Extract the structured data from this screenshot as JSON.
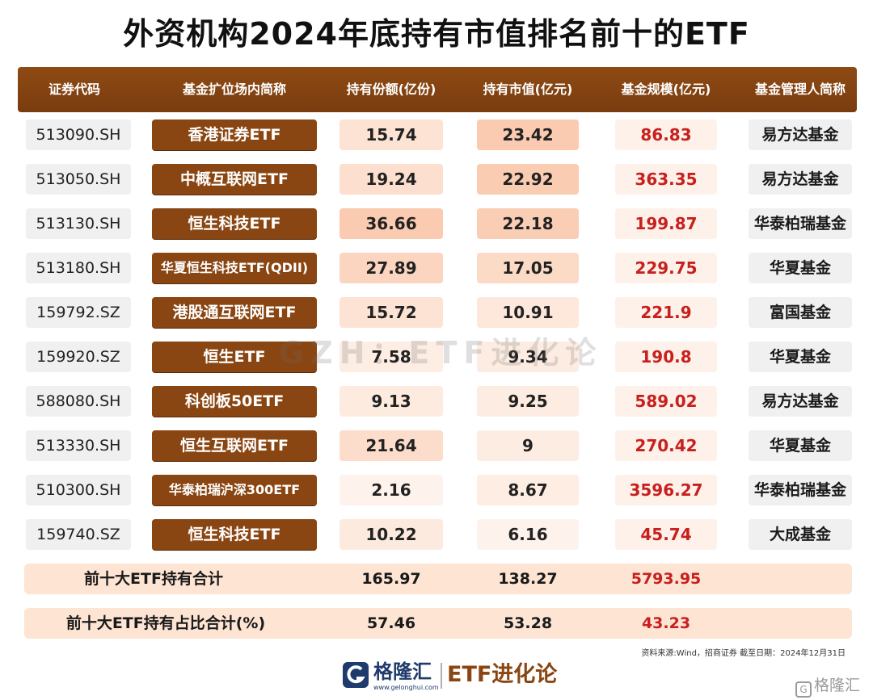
{
  "title": "外资机构2024年底持有市值排名前十的ETF",
  "colors": {
    "header_bg": "#7a3c0e",
    "name_bg": "#8a4612",
    "scale_text": "#c8201d",
    "summary_bg": "#fde4d3"
  },
  "table": {
    "headers": [
      "证券代码",
      "基金扩位场内简称",
      "持有份额(亿份)",
      "持有市值(亿元)",
      "基金规模(亿元)",
      "基金管理人简称"
    ],
    "rows": [
      {
        "code": "513090.SH",
        "name": "香港证券ETF",
        "shares": "15.74",
        "market_value": "23.42",
        "fund_size": "86.83",
        "manager": "易方达基金"
      },
      {
        "code": "513050.SH",
        "name": "中概互联网ETF",
        "shares": "19.24",
        "market_value": "22.92",
        "fund_size": "363.35",
        "manager": "易方达基金"
      },
      {
        "code": "513130.SH",
        "name": "恒生科技ETF",
        "shares": "36.66",
        "market_value": "22.18",
        "fund_size": "199.87",
        "manager": "华泰柏瑞基金"
      },
      {
        "code": "513180.SH",
        "name": "华夏恒生科技ETF(QDII)",
        "shares": "27.89",
        "market_value": "17.05",
        "fund_size": "229.75",
        "manager": "华夏基金"
      },
      {
        "code": "159792.SZ",
        "name": "港股通互联网ETF",
        "shares": "15.72",
        "market_value": "10.91",
        "fund_size": "221.9",
        "manager": "富国基金"
      },
      {
        "code": "159920.SZ",
        "name": "恒生ETF",
        "shares": "7.58",
        "market_value": "9.34",
        "fund_size": "190.8",
        "manager": "华夏基金"
      },
      {
        "code": "588080.SH",
        "name": "科创板50ETF",
        "shares": "9.13",
        "market_value": "9.25",
        "fund_size": "589.02",
        "manager": "易方达基金"
      },
      {
        "code": "513330.SH",
        "name": "恒生互联网ETF",
        "shares": "21.64",
        "market_value": "9",
        "fund_size": "270.42",
        "manager": "华夏基金"
      },
      {
        "code": "510300.SH",
        "name": "华泰柏瑞沪深300ETF",
        "shares": "2.16",
        "market_value": "8.67",
        "fund_size": "3596.27",
        "manager": "华泰柏瑞基金"
      },
      {
        "code": "159740.SZ",
        "name": "恒生科技ETF",
        "shares": "10.22",
        "market_value": "6.16",
        "fund_size": "45.74",
        "manager": "大成基金"
      }
    ],
    "summary": [
      {
        "label": "前十大ETF持有合计",
        "shares": "165.97",
        "market_value": "138.27",
        "fund_size": "5793.95"
      },
      {
        "label": "前十大ETF持有占比合计(%)",
        "shares": "57.46",
        "market_value": "53.28",
        "fund_size": "43.23"
      }
    ]
  },
  "watermark": "GZH：ETF进化论",
  "source_note": "资料来源:Wind，招商证券 截至日期：2024年12月31日",
  "footer": {
    "brand_cn": "格隆汇",
    "brand_url": "www.gelonghui.com",
    "brand2": "ETF进化论",
    "corner_mark": "格隆汇",
    "logo_icon": "g-logo-icon"
  }
}
